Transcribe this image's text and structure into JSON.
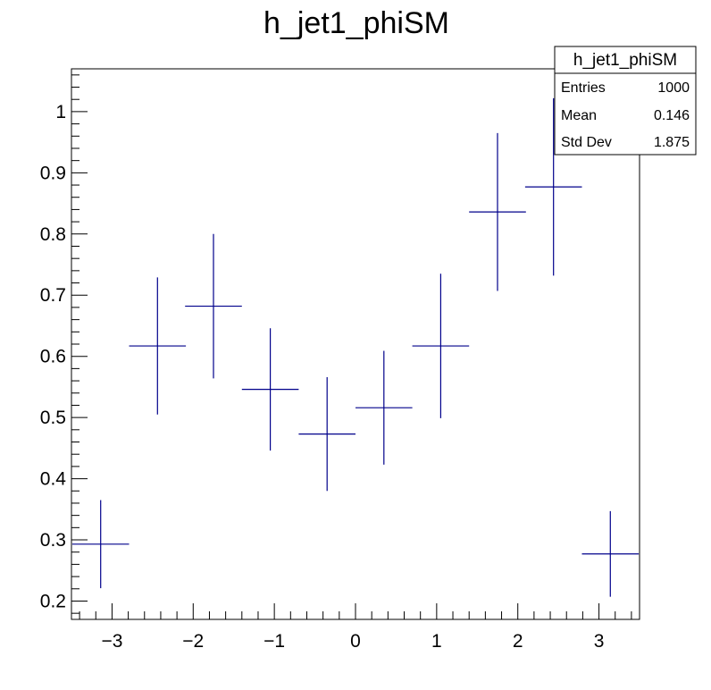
{
  "chart_data": {
    "type": "scatter",
    "style": "histogram-error-bars",
    "title": "h_jet1_phiSM",
    "xlabel": "",
    "ylabel": "",
    "xlim": [
      -3.5,
      3.5
    ],
    "ylim": [
      0.17,
      1.07
    ],
    "x_ticks": [
      -3,
      -2,
      -1,
      0,
      1,
      2,
      3
    ],
    "x_tick_labels": [
      "−3",
      "−2",
      "−1",
      "0",
      "1",
      "2",
      "3"
    ],
    "y_ticks": [
      0.2,
      0.3,
      0.4,
      0.5,
      0.6,
      0.7,
      0.8,
      0.9,
      1.0
    ],
    "y_tick_labels": [
      "0.2",
      "0.3",
      "0.4",
      "0.5",
      "0.6",
      "0.7",
      "0.8",
      "0.9",
      "1"
    ],
    "grid": false,
    "series": [
      {
        "color": "#00008b",
        "points": [
          {
            "x": -3.14,
            "xerr": 0.35,
            "y": 0.293,
            "yerr": 0.072
          },
          {
            "x": -2.44,
            "xerr": 0.35,
            "y": 0.617,
            "yerr": 0.112
          },
          {
            "x": -1.75,
            "xerr": 0.35,
            "y": 0.682,
            "yerr": 0.118
          },
          {
            "x": -1.05,
            "xerr": 0.35,
            "y": 0.546,
            "yerr": 0.1
          },
          {
            "x": -0.35,
            "xerr": 0.35,
            "y": 0.473,
            "yerr": 0.093
          },
          {
            "x": 0.35,
            "xerr": 0.35,
            "y": 0.516,
            "yerr": 0.093
          },
          {
            "x": 1.05,
            "xerr": 0.35,
            "y": 0.617,
            "yerr": 0.118
          },
          {
            "x": 1.75,
            "xerr": 0.35,
            "y": 0.836,
            "yerr": 0.129
          },
          {
            "x": 2.44,
            "xerr": 0.35,
            "y": 0.877,
            "yerr": 0.145
          },
          {
            "x": 3.14,
            "xerr": 0.35,
            "y": 0.277,
            "yerr": 0.07
          }
        ]
      }
    ],
    "stats_box": {
      "title": "h_jet1_phiSM",
      "rows": [
        {
          "label": "Entries",
          "value": "1000"
        },
        {
          "label": "Mean",
          "value": "0.146"
        },
        {
          "label": "Std Dev",
          "value": "1.875"
        }
      ],
      "placement": "top-right"
    }
  }
}
